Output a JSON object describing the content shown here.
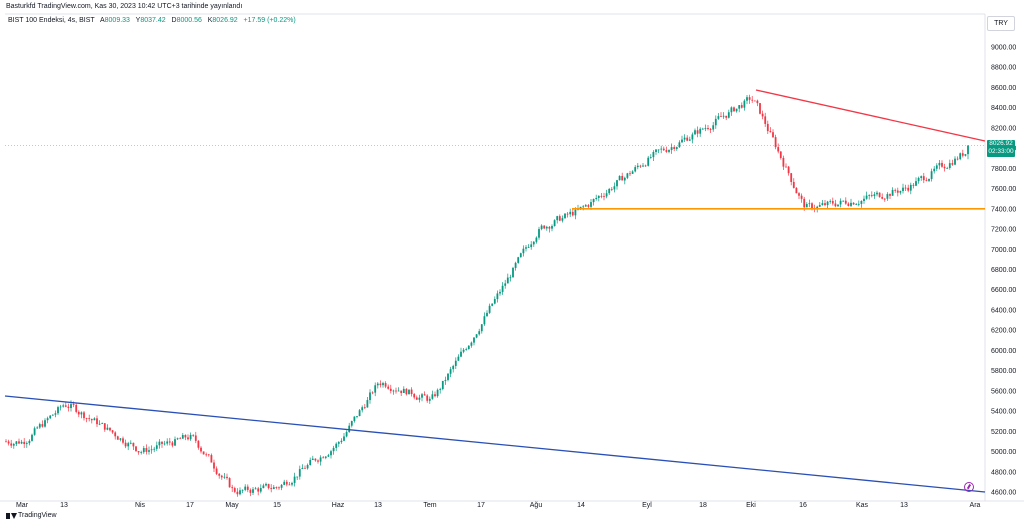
{
  "header": {
    "title": "Basturkfd TradingView.com, Kas 30, 2023 10:42 UTC+3 tarihinde yayınlandı"
  },
  "ohlc": {
    "symbol": "BIST 100 Endeksi, 4s, BIST",
    "open_label": "A",
    "open": "8009.33",
    "high_label": "Y",
    "high": "8037.42",
    "low_label": "D",
    "low": "8000.56",
    "close_label": "K",
    "close": "8026.92",
    "change": "+17.59 (+0.22%)"
  },
  "currency": "TRY",
  "last_price": {
    "value": "8026.92",
    "countdown": "02:33:00"
  },
  "footer": {
    "brand": "TradingView"
  },
  "colors": {
    "up": "#089981",
    "down": "#f23645",
    "resistance": "#f23645",
    "support": "#ff9800",
    "trend": "#2a4fb5",
    "last_line": "#089981"
  },
  "chart_data": {
    "type": "line",
    "subtype": "candlestick",
    "ylim": [
      4600,
      9200
    ],
    "y_ticks": [
      "9000.00",
      "8800.00",
      "8600.00",
      "8400.00",
      "8200.00",
      "8000.00",
      "7800.00",
      "7600.00",
      "7400.00",
      "7200.00",
      "7000.00",
      "6800.00",
      "6600.00",
      "6400.00",
      "6200.00",
      "6000.00",
      "5800.00",
      "5600.00",
      "5400.00",
      "5200.00",
      "5000.00",
      "4800.00",
      "4600.00"
    ],
    "x_ticks": [
      "Mar",
      "13",
      "Nis",
      "17",
      "May",
      "15",
      "Haz",
      "13",
      "Tem",
      "17",
      "Ağu",
      "14",
      "Eyl",
      "18",
      "Eki",
      "16",
      "Kas",
      "13",
      "Ara"
    ],
    "key_points": [
      {
        "x": "Mar",
        "y": 5100
      },
      {
        "x": "13",
        "y": 5480
      },
      {
        "x": "Nis",
        "y": 5000
      },
      {
        "x": "17",
        "y": 5150
      },
      {
        "x": "May",
        "y": 4600
      },
      {
        "x": "15",
        "y": 4650
      },
      {
        "x": "Haz",
        "y": 5100
      },
      {
        "x": "13",
        "y": 5700
      },
      {
        "x": "Tem",
        "y": 5500
      },
      {
        "x": "17",
        "y": 6300
      },
      {
        "x": "Ağu",
        "y": 7200
      },
      {
        "x": "14",
        "y": 7400
      },
      {
        "x": "Eyl",
        "y": 7900
      },
      {
        "x": "18",
        "y": 8200
      },
      {
        "x": "Eki",
        "y": 8500
      },
      {
        "x": "16",
        "y": 7400
      },
      {
        "x": "Kas",
        "y": 7500
      },
      {
        "x": "13",
        "y": 7600
      },
      {
        "x": "Ara",
        "y": 8026.92
      }
    ],
    "support_level": 7400,
    "last_value": 8026.92,
    "grid": false,
    "legend": "none"
  }
}
